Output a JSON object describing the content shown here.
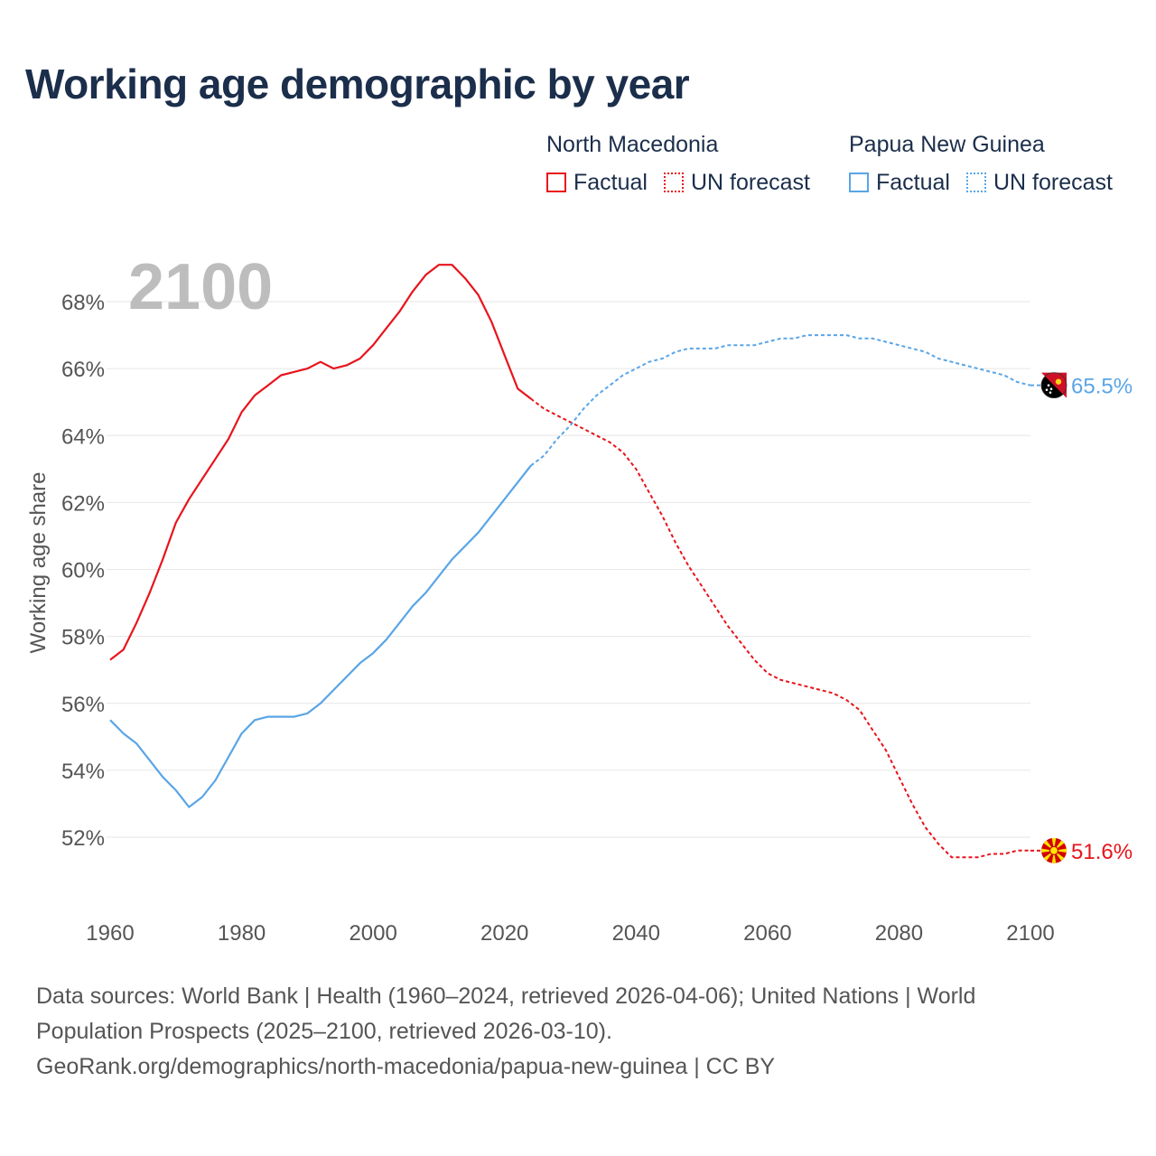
{
  "title": "Working age demographic by year",
  "year_label": "2100",
  "legend": {
    "groups": [
      {
        "country": "North Macedonia",
        "color": "#e8141c",
        "factual": "Factual",
        "forecast": "UN forecast"
      },
      {
        "country": "Papua New Guinea",
        "color": "#5aa5e6",
        "factual": "Factual",
        "forecast": "UN forecast"
      }
    ]
  },
  "chart_data": {
    "type": "line",
    "title": "Working age demographic by year",
    "ylabel": "Working age share",
    "xlabel": "",
    "xlim": [
      1960,
      2100
    ],
    "ylim": [
      50,
      69.5
    ],
    "x_ticks": [
      1960,
      1980,
      2000,
      2020,
      2040,
      2060,
      2080,
      2100
    ],
    "y_ticks": [
      52,
      54,
      56,
      58,
      60,
      62,
      64,
      66,
      68
    ],
    "y_tick_labels": [
      "52%",
      "54%",
      "56%",
      "58%",
      "60%",
      "62%",
      "64%",
      "66%",
      "68%"
    ],
    "factual_end_year": 2024,
    "series": [
      {
        "name": "North Macedonia",
        "color": "#e8141c",
        "end_label": "51.6%",
        "flag": "north-macedonia",
        "points": [
          [
            1960,
            57.3
          ],
          [
            1962,
            57.6
          ],
          [
            1964,
            58.4
          ],
          [
            1966,
            59.3
          ],
          [
            1968,
            60.3
          ],
          [
            1970,
            61.4
          ],
          [
            1972,
            62.1
          ],
          [
            1974,
            62.7
          ],
          [
            1976,
            63.3
          ],
          [
            1978,
            63.9
          ],
          [
            1980,
            64.7
          ],
          [
            1982,
            65.2
          ],
          [
            1984,
            65.5
          ],
          [
            1986,
            65.8
          ],
          [
            1988,
            65.9
          ],
          [
            1990,
            66.0
          ],
          [
            1992,
            66.2
          ],
          [
            1994,
            66.0
          ],
          [
            1996,
            66.1
          ],
          [
            1998,
            66.3
          ],
          [
            2000,
            66.7
          ],
          [
            2002,
            67.2
          ],
          [
            2004,
            67.7
          ],
          [
            2006,
            68.3
          ],
          [
            2008,
            68.8
          ],
          [
            2010,
            69.1
          ],
          [
            2012,
            69.1
          ],
          [
            2014,
            68.7
          ],
          [
            2016,
            68.2
          ],
          [
            2018,
            67.4
          ],
          [
            2020,
            66.4
          ],
          [
            2022,
            65.4
          ],
          [
            2024,
            65.1
          ],
          [
            2026,
            64.8
          ],
          [
            2028,
            64.6
          ],
          [
            2030,
            64.4
          ],
          [
            2032,
            64.2
          ],
          [
            2034,
            64.0
          ],
          [
            2036,
            63.8
          ],
          [
            2038,
            63.5
          ],
          [
            2040,
            63.0
          ],
          [
            2042,
            62.3
          ],
          [
            2044,
            61.6
          ],
          [
            2046,
            60.8
          ],
          [
            2048,
            60.1
          ],
          [
            2050,
            59.5
          ],
          [
            2052,
            58.9
          ],
          [
            2054,
            58.3
          ],
          [
            2056,
            57.8
          ],
          [
            2058,
            57.3
          ],
          [
            2060,
            56.9
          ],
          [
            2062,
            56.7
          ],
          [
            2064,
            56.6
          ],
          [
            2066,
            56.5
          ],
          [
            2068,
            56.4
          ],
          [
            2070,
            56.3
          ],
          [
            2072,
            56.1
          ],
          [
            2074,
            55.8
          ],
          [
            2076,
            55.2
          ],
          [
            2078,
            54.6
          ],
          [
            2080,
            53.8
          ],
          [
            2082,
            53.0
          ],
          [
            2084,
            52.3
          ],
          [
            2086,
            51.8
          ],
          [
            2088,
            51.4
          ],
          [
            2090,
            51.4
          ],
          [
            2092,
            51.4
          ],
          [
            2094,
            51.5
          ],
          [
            2096,
            51.5
          ],
          [
            2098,
            51.6
          ],
          [
            2100,
            51.6
          ]
        ]
      },
      {
        "name": "Papua New Guinea",
        "color": "#5aa5e6",
        "end_label": "65.5%",
        "flag": "papua-new-guinea",
        "points": [
          [
            1960,
            55.5
          ],
          [
            1962,
            55.1
          ],
          [
            1964,
            54.8
          ],
          [
            1966,
            54.3
          ],
          [
            1968,
            53.8
          ],
          [
            1970,
            53.4
          ],
          [
            1972,
            52.9
          ],
          [
            1974,
            53.2
          ],
          [
            1976,
            53.7
          ],
          [
            1978,
            54.4
          ],
          [
            1980,
            55.1
          ],
          [
            1982,
            55.5
          ],
          [
            1984,
            55.6
          ],
          [
            1986,
            55.6
          ],
          [
            1988,
            55.6
          ],
          [
            1990,
            55.7
          ],
          [
            1992,
            56.0
          ],
          [
            1994,
            56.4
          ],
          [
            1996,
            56.8
          ],
          [
            1998,
            57.2
          ],
          [
            2000,
            57.5
          ],
          [
            2002,
            57.9
          ],
          [
            2004,
            58.4
          ],
          [
            2006,
            58.9
          ],
          [
            2008,
            59.3
          ],
          [
            2010,
            59.8
          ],
          [
            2012,
            60.3
          ],
          [
            2014,
            60.7
          ],
          [
            2016,
            61.1
          ],
          [
            2018,
            61.6
          ],
          [
            2020,
            62.1
          ],
          [
            2022,
            62.6
          ],
          [
            2024,
            63.1
          ],
          [
            2026,
            63.4
          ],
          [
            2028,
            63.9
          ],
          [
            2030,
            64.3
          ],
          [
            2032,
            64.8
          ],
          [
            2034,
            65.2
          ],
          [
            2036,
            65.5
          ],
          [
            2038,
            65.8
          ],
          [
            2040,
            66.0
          ],
          [
            2042,
            66.2
          ],
          [
            2044,
            66.3
          ],
          [
            2046,
            66.5
          ],
          [
            2048,
            66.6
          ],
          [
            2050,
            66.6
          ],
          [
            2052,
            66.6
          ],
          [
            2054,
            66.7
          ],
          [
            2056,
            66.7
          ],
          [
            2058,
            66.7
          ],
          [
            2060,
            66.8
          ],
          [
            2062,
            66.9
          ],
          [
            2064,
            66.9
          ],
          [
            2066,
            67.0
          ],
          [
            2068,
            67.0
          ],
          [
            2070,
            67.0
          ],
          [
            2072,
            67.0
          ],
          [
            2074,
            66.9
          ],
          [
            2076,
            66.9
          ],
          [
            2078,
            66.8
          ],
          [
            2080,
            66.7
          ],
          [
            2082,
            66.6
          ],
          [
            2084,
            66.5
          ],
          [
            2086,
            66.3
          ],
          [
            2088,
            66.2
          ],
          [
            2090,
            66.1
          ],
          [
            2092,
            66.0
          ],
          [
            2094,
            65.9
          ],
          [
            2096,
            65.8
          ],
          [
            2098,
            65.6
          ],
          [
            2100,
            65.5
          ]
        ]
      }
    ]
  },
  "source": {
    "line1": "Data sources: World Bank | Health (1960–2024, retrieved 2026-04-06); United Nations | World",
    "line2": "Population Prospects (2025–2100, retrieved 2026-03-10).",
    "line3": "GeoRank.org/demographics/north-macedonia/papua-new-guinea | CC BY"
  }
}
